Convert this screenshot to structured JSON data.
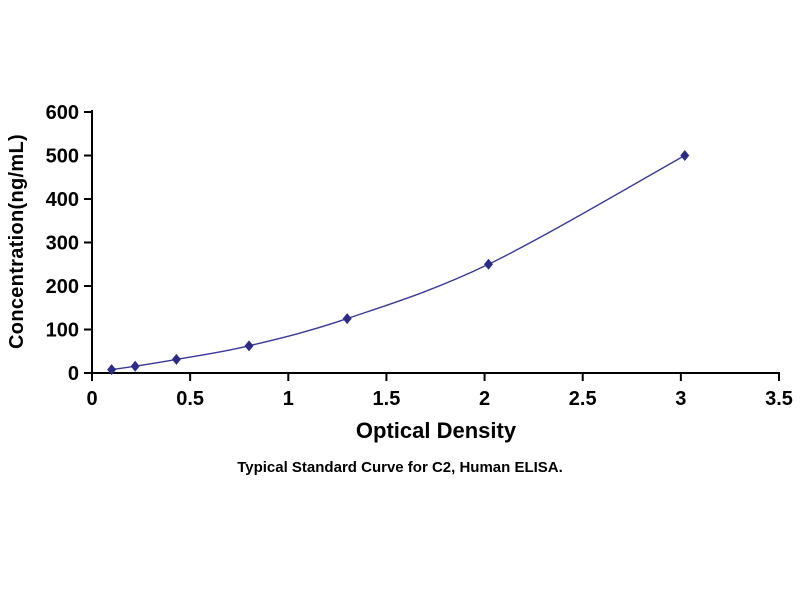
{
  "chart_data": {
    "type": "line",
    "series": [
      {
        "name": "C2 Human ELISA standard curve",
        "x": [
          0.1,
          0.22,
          0.43,
          0.8,
          1.3,
          2.02,
          3.02
        ],
        "y": [
          7.8,
          15.6,
          31.2,
          62.5,
          125,
          250,
          500
        ]
      }
    ],
    "title": "",
    "xlabel": "Optical Density",
    "ylabel": "Concentration(ng/mL)",
    "xlim": [
      0,
      3.5
    ],
    "ylim": [
      0,
      600
    ],
    "x_ticks": [
      0,
      0.5,
      1,
      1.5,
      2,
      2.5,
      3,
      3.5
    ],
    "y_ticks": [
      0,
      100,
      200,
      300,
      400,
      500,
      600
    ],
    "grid": false,
    "legend": "none",
    "marker": "diamond",
    "line_color": "#3A3A9A",
    "marker_color": "#2B2B88",
    "axis_color": "#000000",
    "caption": "Typical Standard Curve for C2, Human ELISA."
  }
}
